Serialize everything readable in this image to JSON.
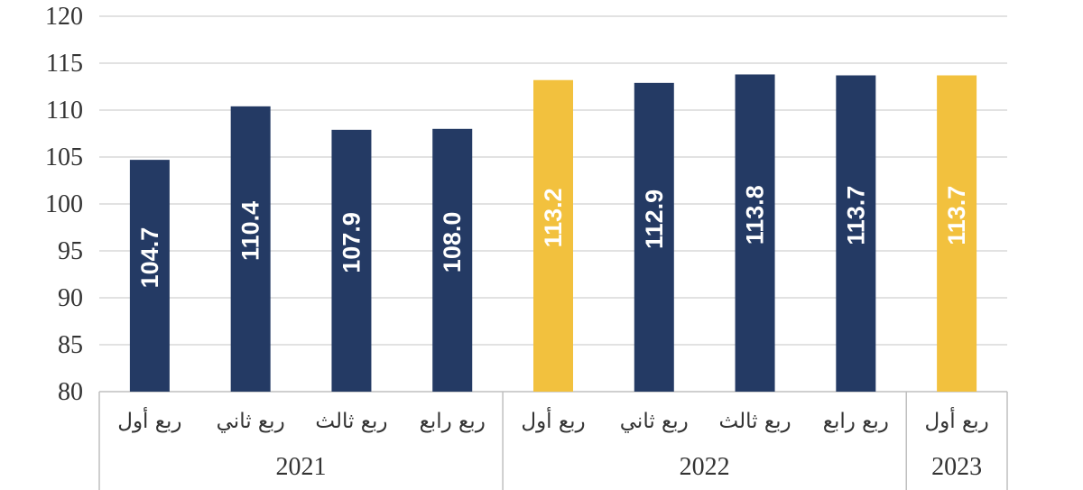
{
  "chart_data": {
    "type": "bar",
    "title": "",
    "xlabel": "",
    "ylabel": "",
    "ylim": [
      80,
      120
    ],
    "yticks": [
      80,
      85,
      90,
      95,
      100,
      105,
      110,
      115,
      120
    ],
    "grid": true,
    "categories": [
      "ربع أول",
      "ربع ثاني",
      "ربع ثالث",
      "ربع رابع",
      "ربع أول",
      "ربع ثاني",
      "ربع ثالث",
      "ربع رابع",
      "ربع أول"
    ],
    "values": [
      104.7,
      110.4,
      107.9,
      108.0,
      113.2,
      112.9,
      113.8,
      113.7,
      113.7
    ],
    "data_labels": [
      "104.7",
      "110.4",
      "107.9",
      "108.0",
      "113.2",
      "112.9",
      "113.8",
      "113.7",
      "113.7"
    ],
    "groups": [
      {
        "label": "2021",
        "count": 4
      },
      {
        "label": "2022",
        "count": 4
      },
      {
        "label": "2023",
        "count": 1
      }
    ],
    "colors": {
      "default": "#243a64",
      "highlight": "#f2c13e"
    },
    "highlight_indices": [
      4,
      8
    ]
  }
}
